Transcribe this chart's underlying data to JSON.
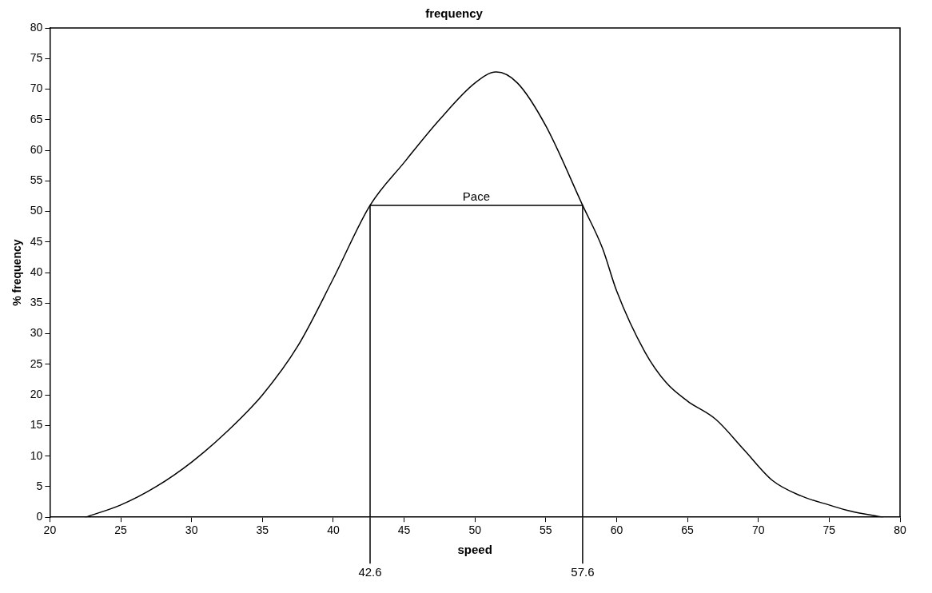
{
  "chart_data": {
    "type": "line",
    "title": "frequency",
    "xlabel": "speed",
    "ylabel": "% frequency",
    "xlim": [
      20,
      80
    ],
    "xticks": [
      20,
      25,
      30,
      35,
      40,
      45,
      50,
      55,
      60,
      65,
      70,
      75,
      80
    ],
    "ylim": [
      0,
      80
    ],
    "yticks": [
      0,
      5,
      10,
      15,
      20,
      25,
      30,
      35,
      40,
      45,
      50,
      55,
      60,
      65,
      70,
      75,
      80
    ],
    "grid": false,
    "legend": false,
    "marker": "none",
    "line_style": "solid",
    "series": [
      {
        "color": "#000000",
        "x": [
          22.5,
          25,
          27.5,
          30,
          32.5,
          35,
          37.5,
          40,
          42.6,
          45,
          47.5,
          50,
          51.5,
          53,
          55,
          57.6,
          59,
          60,
          62,
          63.5,
          65,
          67,
          69,
          71,
          73,
          75,
          76.5,
          78.8
        ],
        "values": [
          0,
          2,
          5,
          9,
          14,
          20,
          28,
          39,
          51,
          58,
          65,
          71,
          72.8,
          71,
          64,
          51,
          44,
          37,
          27,
          22,
          19,
          16,
          11,
          6,
          3.5,
          2,
          1,
          0
        ]
      },
      {
        "color": "#000000",
        "x": [
          42.6,
          42.6,
          57.6,
          57.6
        ],
        "values": [
          0,
          51,
          51,
          0
        ]
      }
    ],
    "annotations": [
      {
        "text": "Pace",
        "x": 50.1,
        "y": 51
      },
      {
        "text": "42.6",
        "x": 42.6
      },
      {
        "text": "57.6",
        "x": 57.6
      }
    ]
  }
}
